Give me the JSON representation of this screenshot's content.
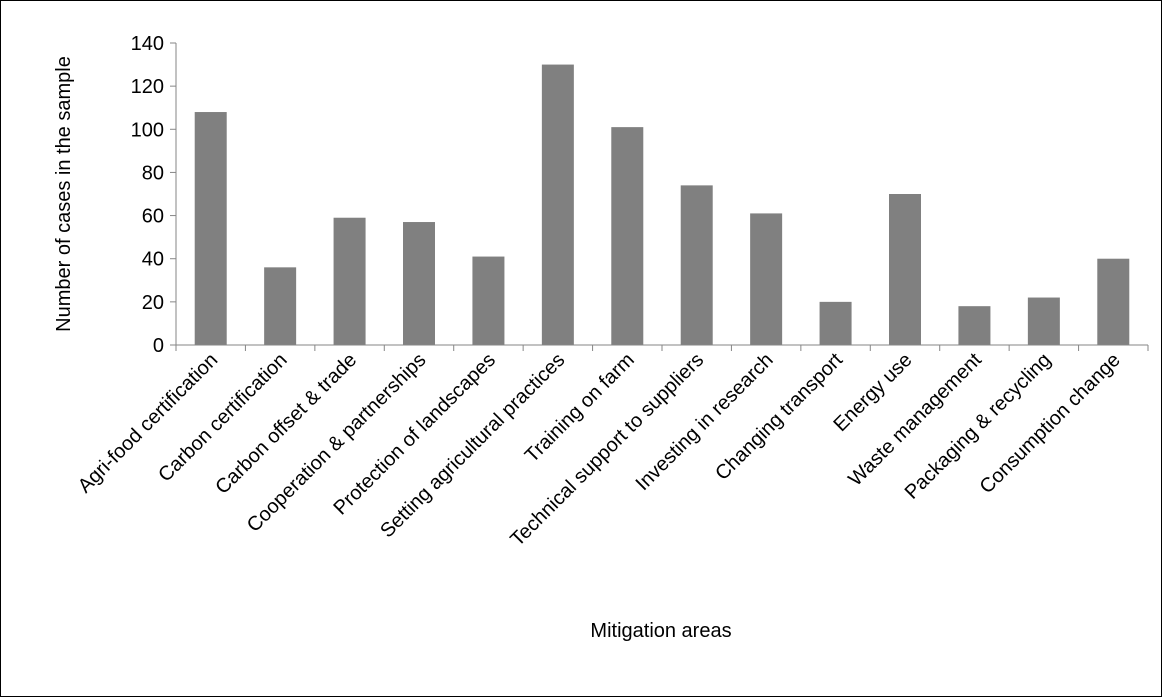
{
  "chart_data": {
    "type": "bar",
    "title": "",
    "xlabel": "Mitigation areas",
    "ylabel": "Number of cases in the sample",
    "ylim": [
      0,
      140
    ],
    "yticks": [
      0,
      20,
      40,
      60,
      80,
      100,
      120,
      140
    ],
    "grid": false,
    "legend": "none",
    "bar_color": "#808080",
    "categories": [
      "Agri-food certification",
      "Carbon certification",
      "Carbon offset & trade",
      "Cooperation & partnerships",
      "Protection of landscapes",
      "Setting agricultural practices",
      "Training on farm",
      "Technical support to suppliers",
      "Investing in research",
      "Changing transport",
      "Energy use",
      "Waste management",
      "Packaging & recycling",
      "Consumption change"
    ],
    "values": [
      108,
      36,
      59,
      57,
      41,
      130,
      101,
      74,
      61,
      20,
      70,
      18,
      22,
      40
    ]
  }
}
